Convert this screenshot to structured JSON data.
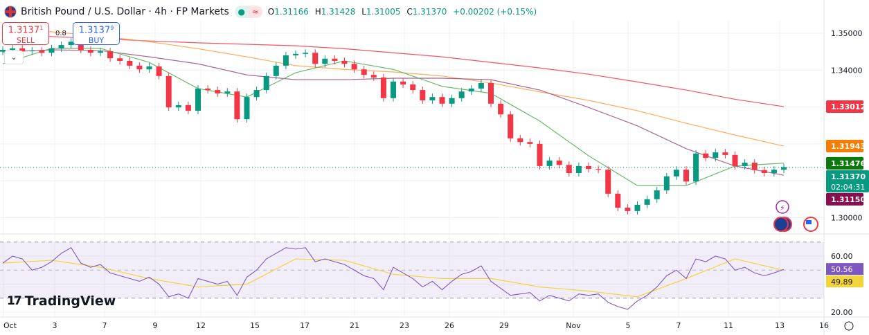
{
  "header": {
    "symbol": "British Pound / U.S. Dollar · 4h · FP Markets",
    "status_dot": "●",
    "status_wave": "≈",
    "open": "1.31166",
    "high": "1.31428",
    "low": "1.31005",
    "close": "1.31370",
    "change": "+0.00202 (+0.15%)",
    "o_label": "O",
    "h_label": "H",
    "l_label": "L",
    "c_label": "C"
  },
  "trade": {
    "sell_price": "1.3137",
    "sell_sup": "1",
    "sell_label": "SELL",
    "buy_price": "1.3137",
    "buy_sup": "9",
    "buy_label": "BUY",
    "spread": "0.8",
    "collapse_icon": "chevron-down-icon"
  },
  "logo": "TradingView",
  "colors": {
    "up": "#089981",
    "down": "#f23645",
    "ma_green": "#4caf50",
    "ma_purple": "#9c4a7a",
    "ma_orange": "#ff9f43",
    "ma_red": "#f23645",
    "rsi": "#7e57c2",
    "rsi_ma": "#f5d33b"
  },
  "chart_data": [
    {
      "type": "candlestick",
      "title": "British Pound / U.S. Dollar · 4h · FP Markets",
      "ylim": [
        1.298,
        1.3525
      ],
      "grid": true,
      "price_ticks": [
        "1.35000",
        "1.34000",
        "1.30000"
      ],
      "x_ticks": [
        "Oct",
        "3",
        "7",
        "9",
        "12",
        "15",
        "17",
        "21",
        "23",
        "26",
        "29",
        "Nov",
        "5",
        "7",
        "11",
        "13",
        "16"
      ],
      "closes": [
        1.3455,
        1.3459,
        1.3451,
        1.3453,
        1.3447,
        1.3459,
        1.3468,
        1.3477,
        1.3455,
        1.3447,
        1.3451,
        1.3432,
        1.3425,
        1.3412,
        1.3402,
        1.341,
        1.3384,
        1.3299,
        1.3305,
        1.329,
        1.335,
        1.3346,
        1.3337,
        1.3342,
        1.3267,
        1.3327,
        1.3346,
        1.3384,
        1.3412,
        1.344,
        1.3444,
        1.3447,
        1.3417,
        1.3431,
        1.3425,
        1.3417,
        1.3402,
        1.3387,
        1.338,
        1.3324,
        1.3369,
        1.3361,
        1.3346,
        1.3318,
        1.3327,
        1.3309,
        1.3324,
        1.3342,
        1.335,
        1.3365,
        1.3309,
        1.328,
        1.3215,
        1.3205,
        1.32,
        1.314,
        1.3155,
        1.3143,
        1.3121,
        1.314,
        1.3132,
        1.313,
        1.3065,
        1.3027,
        1.3018,
        1.3035,
        1.305,
        1.3074,
        1.3112,
        1.313,
        1.3098,
        1.3174,
        1.3162,
        1.3177,
        1.317,
        1.314,
        1.3149,
        1.3129,
        1.3121,
        1.313,
        1.3137
      ],
      "first_open": 1.345,
      "moving_averages_every_5_bars": [
        {
          "color": "#f23645",
          "last": "1.33012",
          "values": [
            1.3496,
            1.3491,
            1.3485,
            1.3479,
            1.3474,
            1.347,
            1.3466,
            1.3458,
            1.3447,
            1.3436,
            1.3421,
            1.3406,
            1.3389,
            1.3368,
            1.3346,
            1.3321,
            1.3301
          ]
        },
        {
          "color": "#ff9f43",
          "last": "1.31943",
          "values": [
            1.3511,
            1.3504,
            1.3492,
            1.3477,
            1.3458,
            1.3436,
            1.3412,
            1.3402,
            1.3395,
            1.3384,
            1.3365,
            1.3341,
            1.3318,
            1.329,
            1.3256,
            1.3224,
            1.3194
          ]
        },
        {
          "color": "#9c4a7a",
          "last": "1.31150",
          "values": [
            1.3449,
            1.3455,
            1.3453,
            1.3436,
            1.3417,
            1.3387,
            1.3374,
            1.3374,
            1.3378,
            1.3378,
            1.3374,
            1.3346,
            1.3299,
            1.3249,
            1.3187,
            1.314,
            1.3115
          ]
        },
        {
          "color": "#4caf50",
          "last": "1.31476",
          "values": [
            1.3417,
            1.3459,
            1.3459,
            1.3421,
            1.335,
            1.3327,
            1.3393,
            1.3425,
            1.3402,
            1.3356,
            1.3337,
            1.3262,
            1.3168,
            1.3087,
            1.3087,
            1.314,
            1.3148
          ]
        }
      ],
      "last_price": "1.31370",
      "countdown": "02:04:31"
    },
    {
      "type": "line",
      "ylim": [
        15,
        80
      ],
      "bands": [
        30,
        50,
        70
      ],
      "y_ticks": [
        "60.00",
        "20.00"
      ],
      "rsi": [
        55,
        60,
        58,
        50,
        52,
        56,
        62,
        66,
        55,
        52,
        54,
        48,
        46,
        44,
        42,
        45,
        40,
        31,
        33,
        30,
        44,
        42,
        40,
        42,
        32,
        45,
        50,
        58,
        62,
        66,
        65,
        66,
        56,
        58,
        56,
        54,
        50,
        46,
        44,
        36,
        52,
        48,
        44,
        38,
        42,
        36,
        42,
        47,
        49,
        53,
        42,
        37,
        32,
        33,
        34,
        28,
        32,
        30,
        28,
        33,
        32,
        33,
        27,
        24,
        22,
        28,
        32,
        38,
        46,
        50,
        44,
        58,
        56,
        60,
        58,
        50,
        52,
        48,
        46,
        48,
        50.56
      ],
      "rsi_ma_every_5_bars": [
        55,
        57,
        52,
        44,
        38,
        40,
        58,
        57,
        47,
        44,
        44,
        38,
        35,
        31,
        44,
        58,
        49.89
      ],
      "rsi_last": "50.56",
      "rsi_ma_last": "49.89"
    }
  ]
}
